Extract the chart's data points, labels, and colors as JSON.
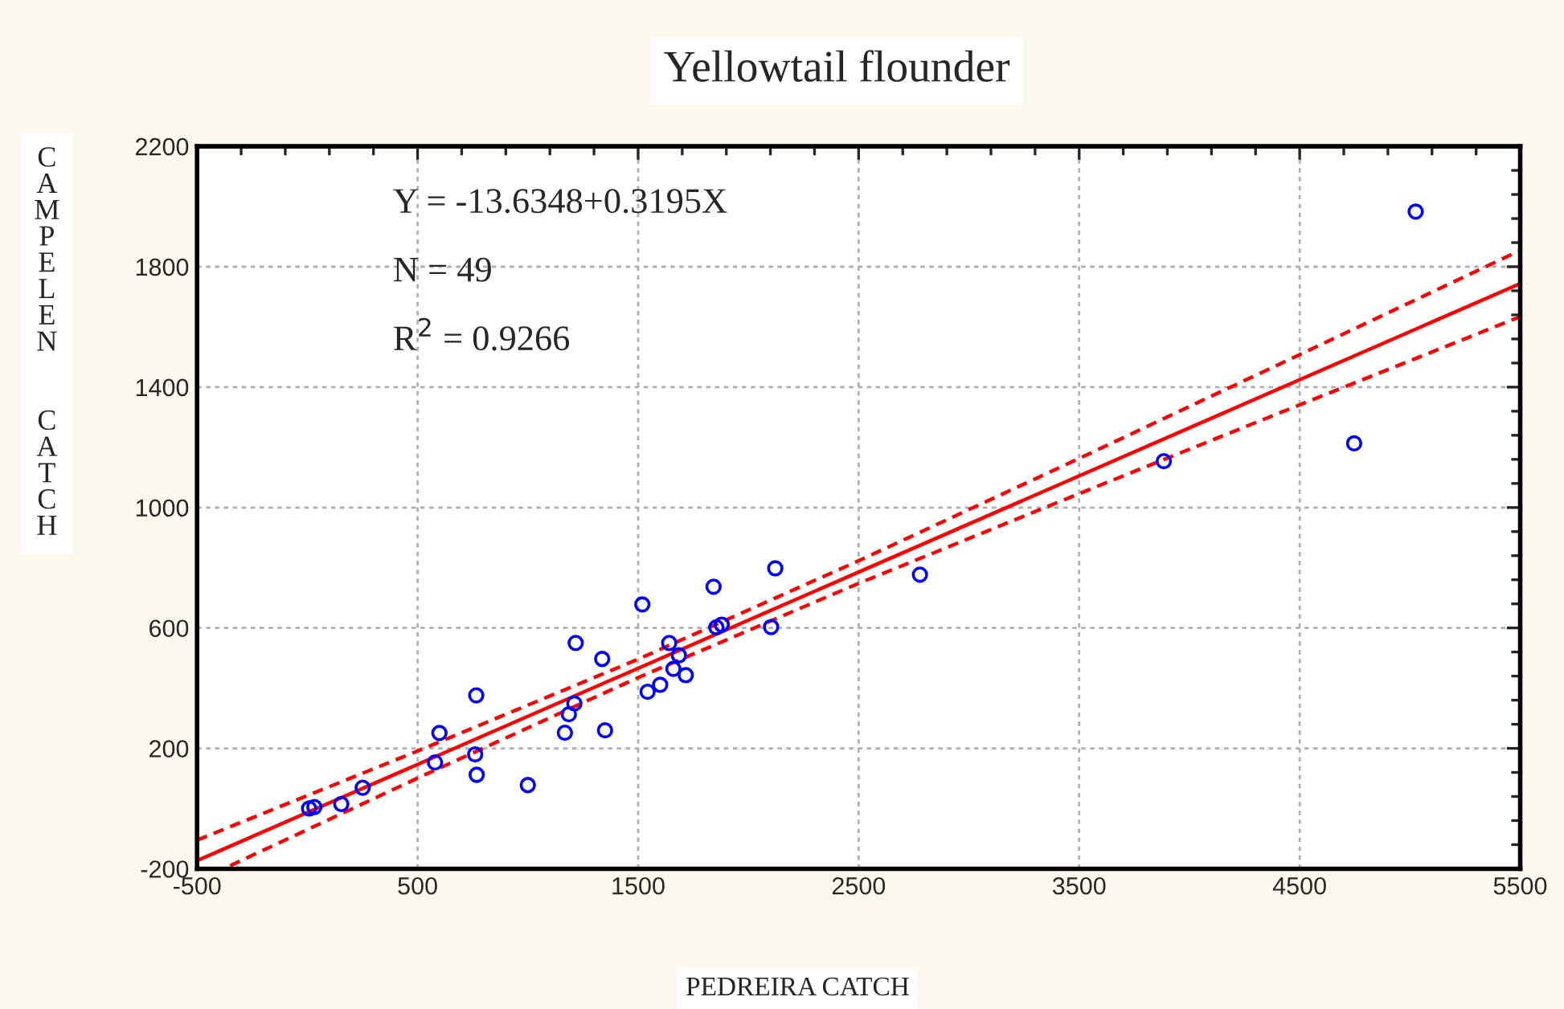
{
  "chart_data": {
    "type": "scatter",
    "title": "Yellowtail flounder",
    "xlabel": "PEDREIRA CATCH",
    "ylabel": "CAMPELEN  CATCH",
    "xlim": [
      -500,
      5500
    ],
    "xticks": [
      -500,
      500,
      1500,
      2500,
      3500,
      4500,
      5500
    ],
    "ylim": [
      -200,
      2200
    ],
    "yticks": [
      -200,
      200,
      600,
      1000,
      1400,
      1800,
      2200
    ],
    "grid": true,
    "legend": false,
    "marker": "circle",
    "annotations": [
      "Y = -13.6348+0.3195X",
      "N = 49",
      "R$^{2}$ = 0.9266"
    ],
    "series": [
      {
        "color": "#0000ff",
        "x": [
          8,
          32,
          154,
          251,
          599,
          579,
          766,
          761,
          768,
          1000,
          1217,
          1337,
          1211,
          1186,
          1168,
          1350,
          1519,
          1543,
          1600,
          1641,
          1685,
          1660,
          1716,
          1842,
          1879,
          1855,
          2122,
          2103,
          2778,
          3884,
          4747,
          5026
        ],
        "values": [
          0,
          5,
          15,
          69,
          251,
          153,
          376,
          180,
          112,
          78,
          550,
          497,
          349,
          313,
          252,
          260,
          678,
          388,
          411,
          550,
          509,
          464,
          443,
          737,
          611,
          602,
          798,
          603,
          777,
          1154,
          1213,
          1983
        ]
      },
      {
        "type": "line",
        "color": "#ff0000",
        "marker": "none",
        "line_style": "solid",
        "x": [
          -500,
          5500
        ],
        "values": [
          -173,
          1744
        ]
      },
      {
        "type": "line",
        "color": "#ff0000",
        "marker": "none",
        "line_style": "dashed",
        "x": [
          -500,
          500,
          1500,
          2500,
          3500,
          4500,
          5500
        ],
        "values": [
          -105,
          191,
          496,
          823,
          1163,
          1508,
          1854
        ]
      },
      {
        "type": "line",
        "color": "#ff0000",
        "marker": "none",
        "line_style": "dashed",
        "x": [
          -350,
          500,
          1500,
          2500,
          3500,
          4500,
          5500
        ],
        "values": [
          -190,
          101,
          435,
          748,
          1046,
          1341,
          1634
        ]
      }
    ]
  }
}
